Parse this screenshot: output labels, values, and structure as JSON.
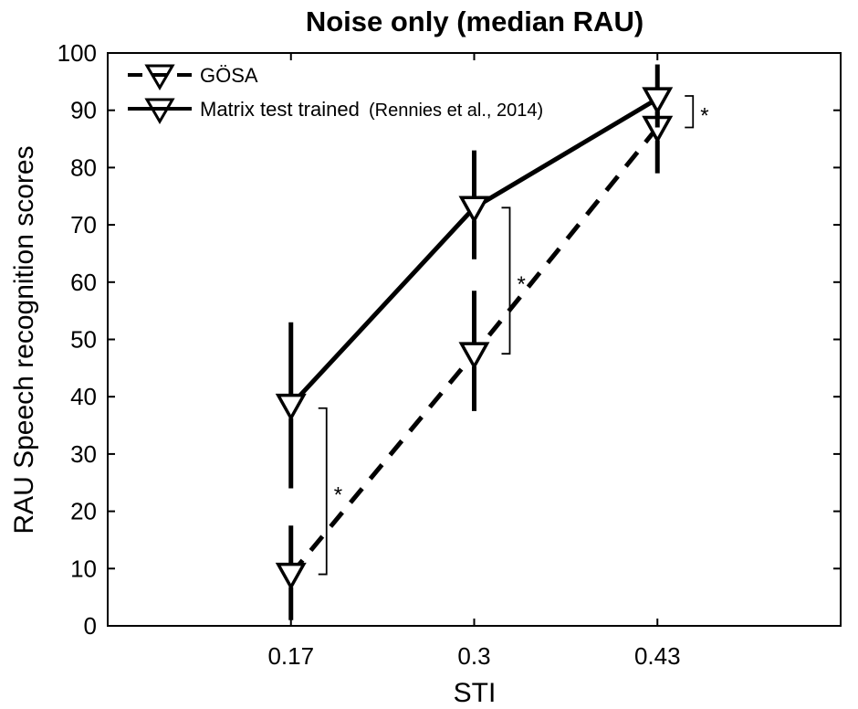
{
  "chart_data": {
    "type": "line",
    "title": "Noise only (median RAU)",
    "xlabel": "STI",
    "ylabel": "RAU Speech recognition scores",
    "x": [
      0.17,
      0.3,
      0.43
    ],
    "x_tick_labels": [
      "0.17",
      "0.3",
      "0.43"
    ],
    "xlim": [
      0.04,
      0.56
    ],
    "ylim": [
      0,
      100
    ],
    "y_ticks": [
      0,
      10,
      20,
      30,
      40,
      50,
      60,
      70,
      80,
      90,
      100
    ],
    "grid": false,
    "legend_position": "top-left",
    "series": [
      {
        "name": "GÖSA",
        "line_style": "dashed",
        "marker": "triangle-down",
        "color": "#000000",
        "values": [
          9,
          47.5,
          87
        ],
        "error_low": [
          1,
          37.5,
          79
        ],
        "error_high": [
          17.5,
          58.5,
          92
        ]
      },
      {
        "name": "Matrix test trained",
        "name_suffix": "(Rennies et al., 2014)",
        "line_style": "solid",
        "marker": "triangle-down",
        "color": "#000000",
        "values": [
          38.5,
          73,
          92
        ],
        "error_low": [
          24,
          64,
          87
        ],
        "error_high": [
          53,
          83,
          98
        ]
      }
    ],
    "annotations": [
      {
        "text": "*",
        "x": 0.17,
        "y_low": 9,
        "y_high": 38,
        "side": "right"
      },
      {
        "text": "*",
        "x": 0.3,
        "y_low": 47.5,
        "y_high": 73,
        "side": "right"
      },
      {
        "text": "*",
        "x": 0.43,
        "y_low": 87,
        "y_high": 92.5,
        "side": "right"
      }
    ]
  }
}
